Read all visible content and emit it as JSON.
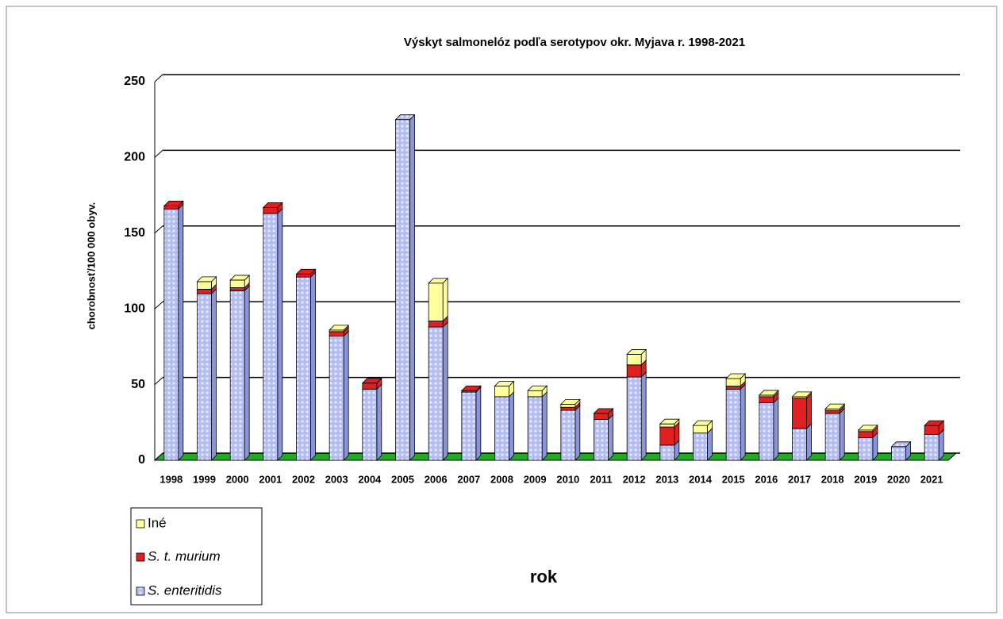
{
  "chart_data": {
    "type": "bar3d_stacked",
    "title": "Výskyt salmonelóz podľa serotypov okr. Myjava r. 1998-2021",
    "x_label": "rok",
    "y_label": "chorobnosť/100 000 obyv.",
    "categories": [
      "1998",
      "1999",
      "2000",
      "2001",
      "2002",
      "2003",
      "2004",
      "2005",
      "2006",
      "2007",
      "2008",
      "2009",
      "2010",
      "2011",
      "2012",
      "2013",
      "2014",
      "2015",
      "2016",
      "2017",
      "2018",
      "2019",
      "2020",
      "2021"
    ],
    "series": [
      {
        "name": "S. enteritidis",
        "color": "#b4bcf4",
        "values": [
          166,
          110,
          112,
          163,
          121,
          82,
          47,
          225,
          88,
          45,
          42,
          42,
          33,
          27,
          55,
          10,
          18,
          47,
          38,
          21,
          31,
          15,
          9,
          17
        ]
      },
      {
        "name": "S. t. murium",
        "color": "#e02020",
        "values": [
          2,
          3,
          2,
          4,
          2,
          3,
          4,
          0,
          4,
          1,
          0,
          0,
          2,
          4,
          8,
          12,
          0,
          2,
          4,
          20,
          2,
          4,
          0,
          6
        ]
      },
      {
        "name": "Iné",
        "color": "#ffff99",
        "values": [
          0,
          5,
          5,
          0,
          0,
          1,
          0,
          0,
          25,
          0,
          7,
          4,
          2,
          0,
          7,
          2,
          5,
          5,
          1,
          1,
          1,
          1,
          0,
          0
        ]
      }
    ],
    "ylim": [
      0,
      250
    ],
    "yticks": [
      0,
      50,
      100,
      150,
      200,
      250
    ],
    "grid": true,
    "floor_color": "#22aa22",
    "legend": "bottom-left"
  }
}
